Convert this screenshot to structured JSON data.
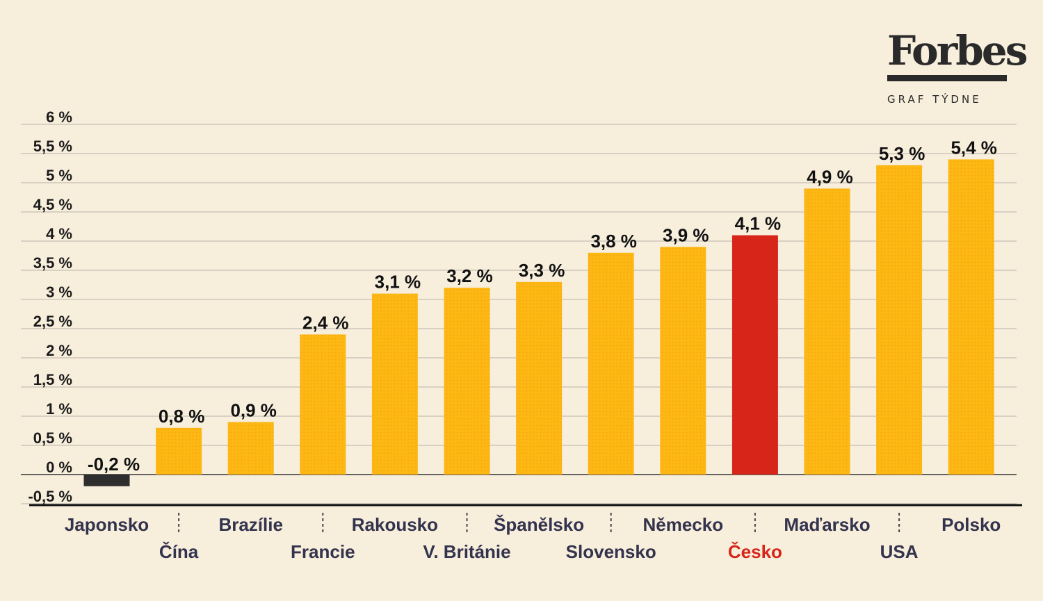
{
  "brand": {
    "logo": "Forbes",
    "subtitle": "GRAF TÝDNE"
  },
  "colors": {
    "background": "#f7eedc",
    "bar": "#fdb813",
    "highlight": "#d8251a",
    "negative": "#2e2e2e",
    "label": "#33334d",
    "highlight_label": "#d8251a",
    "grid": "#b8b3aa",
    "axis": "#111111"
  },
  "chart_data": {
    "type": "bar",
    "categories": [
      "Japonsko",
      "Čína",
      "Brazílie",
      "Francie",
      "Rakousko",
      "V. Británie",
      "Španělsko",
      "Slovensko",
      "Německo",
      "Česko",
      "Maďarsko",
      "USA",
      "Polsko"
    ],
    "values": [
      -0.2,
      0.8,
      0.9,
      2.4,
      3.1,
      3.2,
      3.3,
      3.8,
      3.9,
      4.1,
      4.9,
      5.3,
      5.4
    ],
    "value_labels": [
      "-0,2 %",
      "0,8 %",
      "0,9 %",
      "2,4 %",
      "3,1 %",
      "3,2 %",
      "3,3 %",
      "3,8 %",
      "3,9 %",
      "4,1 %",
      "4,9 %",
      "5,3 %",
      "5,4 %"
    ],
    "highlight": "Česko",
    "ylim": [
      -0.5,
      6
    ],
    "yticks": [
      6,
      5.5,
      5,
      4.5,
      4,
      3.5,
      3,
      2.5,
      2,
      1.5,
      1,
      0.5,
      0,
      -0.5
    ],
    "ytick_labels": [
      "6 %",
      "5,5 %",
      "5 %",
      "4,5 %",
      "4 %",
      "3,5 %",
      "3 %",
      "2,5 %",
      "2 %",
      "1,5 %",
      "1 %",
      "0,5 %",
      "0 %",
      "-0,5 %"
    ],
    "grid": true,
    "title": "",
    "xlabel": "",
    "ylabel": ""
  }
}
